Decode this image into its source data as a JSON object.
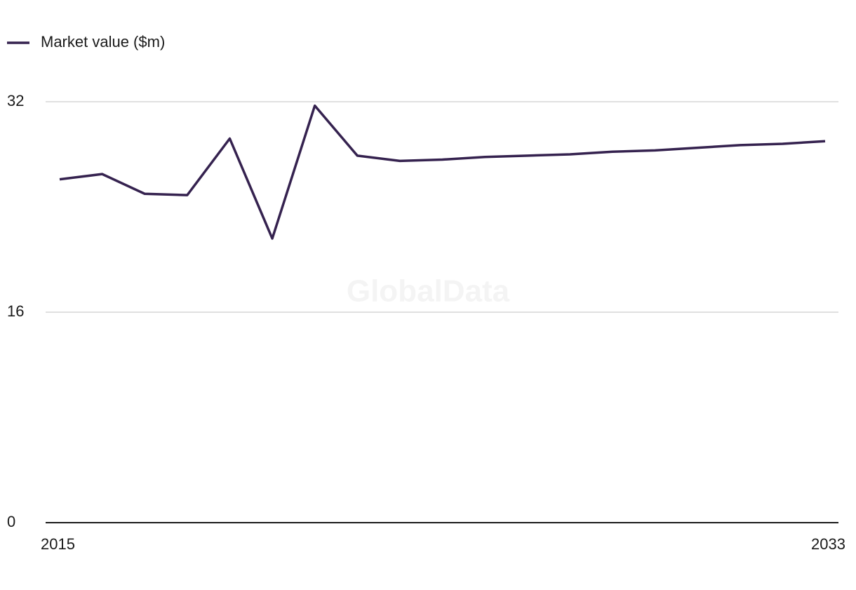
{
  "chart_data": {
    "type": "line",
    "legend": "top-left",
    "watermark": "GlobalData",
    "x": [
      2015,
      2016,
      2017,
      2018,
      2019,
      2020,
      2021,
      2022,
      2023,
      2024,
      2025,
      2026,
      2027,
      2028,
      2029,
      2030,
      2031,
      2032,
      2033
    ],
    "series": [
      {
        "name": "Market value ($m)",
        "color": "#35224f",
        "values": [
          26.1,
          26.5,
          25.0,
          24.9,
          29.2,
          21.6,
          31.7,
          27.9,
          27.5,
          27.6,
          27.8,
          27.9,
          28.0,
          28.2,
          28.3,
          28.5,
          28.7,
          28.8,
          29.0
        ]
      }
    ],
    "xlim": [
      2015,
      2033
    ],
    "xticks": [
      2015,
      2033
    ],
    "ylim": [
      0,
      32
    ],
    "yticks": [
      0,
      16,
      32
    ],
    "grid": true
  }
}
